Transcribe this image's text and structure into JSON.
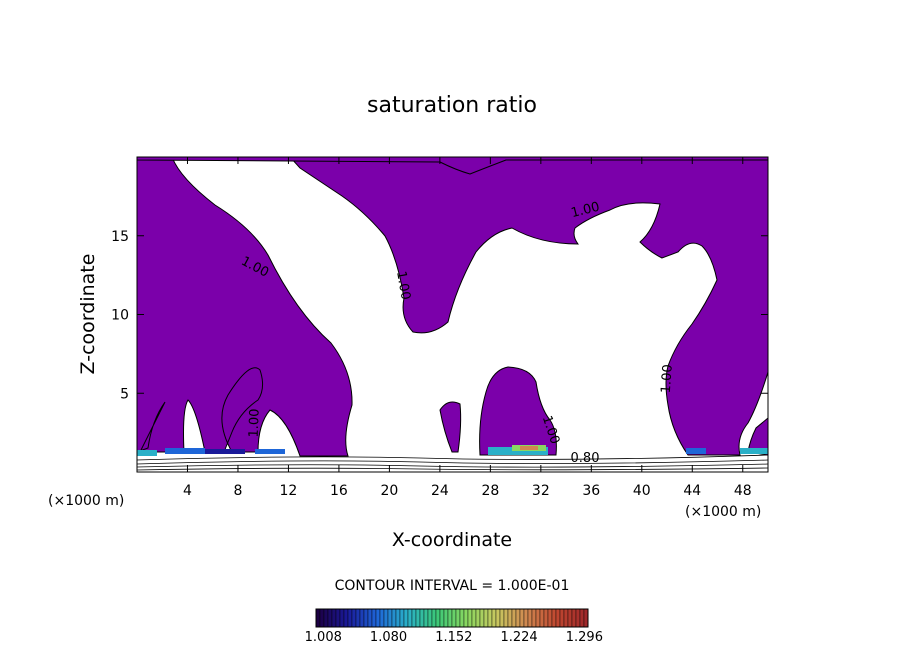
{
  "chart_data": {
    "type": "contour",
    "title": "saturation ratio",
    "xlabel": "X-coordinate",
    "ylabel": "Z-coordinate",
    "x_unit": "(×1000 m)",
    "z_unit": "(×1000 m)",
    "xlim": [
      0,
      50
    ],
    "ylim": [
      0,
      20
    ],
    "x_ticks": [
      4,
      8,
      12,
      16,
      20,
      24,
      28,
      32,
      36,
      40,
      44,
      48
    ],
    "y_ticks": [
      5,
      10,
      15
    ],
    "contour_interval_text": "CONTOUR INTERVAL = 1.000E-01",
    "contour_labels": [
      {
        "text": "1.00",
        "x": 9.2,
        "z": 12.8,
        "angle": 28
      },
      {
        "text": "1.00",
        "x": 20.8,
        "z": 11.8,
        "angle": 80
      },
      {
        "text": "1.00",
        "x": 35.6,
        "z": 16.4,
        "angle": -14
      },
      {
        "text": "1.00",
        "x": 42.3,
        "z": 5.9,
        "angle": -86
      },
      {
        "text": "1.00",
        "x": 9.6,
        "z": 3.1,
        "angle": -88
      },
      {
        "text": "1.00",
        "x": 32.5,
        "z": 2.6,
        "angle": 72
      },
      {
        "text": "0.80",
        "x": 35.5,
        "z": 0.65,
        "angle": 0
      }
    ],
    "colorbar": {
      "ticks": [
        "1.008",
        "1.080",
        "1.152",
        "1.224",
        "1.296"
      ],
      "range": [
        1.0,
        1.3
      ]
    },
    "fill_color": "#7b00aa",
    "colormap": [
      "#1c0044",
      "#1a1a9a",
      "#1e66d8",
      "#2ab0c8",
      "#3cc878",
      "#8ad860",
      "#c8c860",
      "#d08850",
      "#c04830",
      "#a0282a"
    ]
  }
}
